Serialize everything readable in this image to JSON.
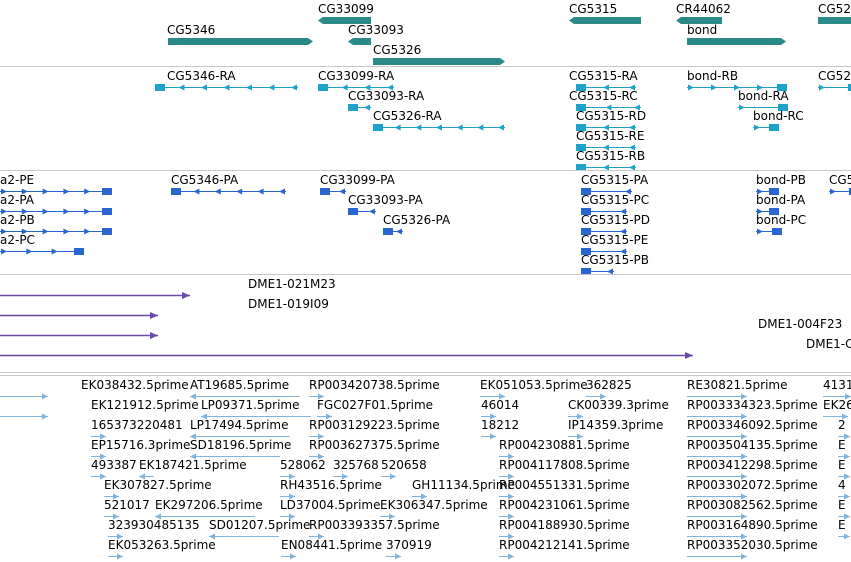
{
  "colors": {
    "gene": "#2a8a8a",
    "transcript": "#1ea2c9",
    "protein": "#2a66d0",
    "clone": "#6a4aa8",
    "est": "#80b4dc"
  },
  "tracks": [
    {
      "key": "genes",
      "features": [
        {
          "label": "CG5346"
        },
        {
          "label": "CG33099"
        },
        {
          "label": "CG33093"
        },
        {
          "label": "CG5326"
        },
        {
          "label": "CG5315"
        },
        {
          "label": "CR44062"
        },
        {
          "label": "bond"
        },
        {
          "label": "CG52"
        }
      ]
    },
    {
      "key": "transcripts",
      "features": [
        {
          "label": "CG5346-RA"
        },
        {
          "label": "CG33099-RA"
        },
        {
          "label": "CG33093-RA"
        },
        {
          "label": "CG5326-RA"
        },
        {
          "label": "CG5315-RA"
        },
        {
          "label": "CG5315-RC"
        },
        {
          "label": "CG5315-RD"
        },
        {
          "label": "CG5315-RE"
        },
        {
          "label": "CG5315-RB"
        },
        {
          "label": "bond-RB"
        },
        {
          "label": "bond-RA"
        },
        {
          "label": "bond-RC"
        },
        {
          "label": "CG52"
        }
      ]
    },
    {
      "key": "proteins",
      "features": [
        {
          "label": "a2-PE"
        },
        {
          "label": "a2-PA"
        },
        {
          "label": "a2-PB"
        },
        {
          "label": "a2-PC"
        },
        {
          "label": "CG5346-PA"
        },
        {
          "label": "CG33099-PA"
        },
        {
          "label": "CG33093-PA"
        },
        {
          "label": "CG5326-PA"
        },
        {
          "label": "CG5315-PA"
        },
        {
          "label": "CG5315-PC"
        },
        {
          "label": "CG5315-PD"
        },
        {
          "label": "CG5315-PE"
        },
        {
          "label": "CG5315-PB"
        },
        {
          "label": "bond-PB"
        },
        {
          "label": "bond-PA"
        },
        {
          "label": "bond-PC"
        },
        {
          "label": "CG5"
        }
      ]
    },
    {
      "key": "clones",
      "features": [
        {
          "label": "DME1-021M23"
        },
        {
          "label": "DME1-019I09"
        },
        {
          "label": "DME1-004F23"
        },
        {
          "label": "DME1-C"
        }
      ]
    },
    {
      "key": "ests",
      "features": [
        {
          "label": "EK038432.5prime"
        },
        {
          "label": "AT19685.5prime"
        },
        {
          "label": "RP003420738.5prime"
        },
        {
          "label": "EK051053.5prime"
        },
        {
          "label": "362825"
        },
        {
          "label": "RE30821.5prime"
        },
        {
          "label": "4131"
        },
        {
          "label": "EK121912.5prime"
        },
        {
          "label": "LP09371.5prime"
        },
        {
          "label": "FGC027F01.5prime"
        },
        {
          "label": "46014"
        },
        {
          "label": "CK00339.3prime"
        },
        {
          "label": "RP003334323.5prime"
        },
        {
          "label": "EK26"
        },
        {
          "label": "165373220481"
        },
        {
          "label": "LP17494.5prime"
        },
        {
          "label": "RP003129223.5prime"
        },
        {
          "label": "18212"
        },
        {
          "label": "IP14359.3prime"
        },
        {
          "label": "RP003346092.5prime"
        },
        {
          "label": "2"
        },
        {
          "label": "EP15716.3prime"
        },
        {
          "label": "SD18196.5prime"
        },
        {
          "label": "RP003627375.5prime"
        },
        {
          "label": "RP004230881.5prime"
        },
        {
          "label": "RP003504135.5prime"
        },
        {
          "label": "E"
        },
        {
          "label": "493387"
        },
        {
          "label": "EK187421.5prime"
        },
        {
          "label": "528062"
        },
        {
          "label": "325768"
        },
        {
          "label": "520658"
        },
        {
          "label": "RP004117808.5prime"
        },
        {
          "label": "RP003412298.5prime"
        },
        {
          "label": "E"
        },
        {
          "label": "EK307827.5prime"
        },
        {
          "label": "RH43516.5prime"
        },
        {
          "label": "GH11134.5prime"
        },
        {
          "label": "RP004551331.5prime"
        },
        {
          "label": "RP003302072.5prime"
        },
        {
          "label": "4"
        },
        {
          "label": "521017"
        },
        {
          "label": "EK297206.5prime"
        },
        {
          "label": "LD37004.5prime"
        },
        {
          "label": "EK306347.5prime"
        },
        {
          "label": "RP004231061.5prime"
        },
        {
          "label": "RP003082562.5prime"
        },
        {
          "label": "E"
        },
        {
          "label": "323930485135"
        },
        {
          "label": "SD01207.5prime"
        },
        {
          "label": "RP003393357.5prime"
        },
        {
          "label": "RP004188930.5prime"
        },
        {
          "label": "RP003164890.5prime"
        },
        {
          "label": "E"
        },
        {
          "label": "EK053263.5prime"
        },
        {
          "label": "EN08441.5prime"
        },
        {
          "label": "370919"
        },
        {
          "label": "RP004212141.5prime"
        },
        {
          "label": "RP003352030.5prime"
        }
      ]
    }
  ]
}
